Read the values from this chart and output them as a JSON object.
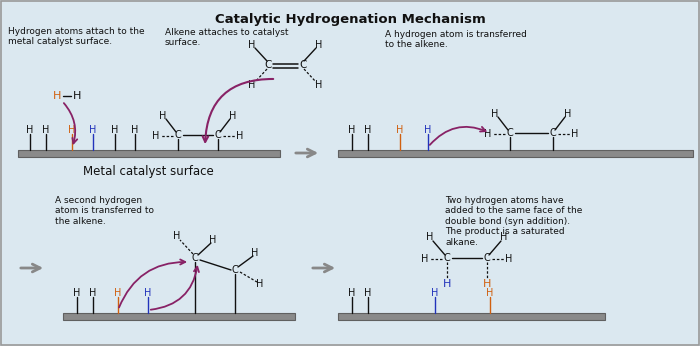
{
  "title": "Catalytic Hydrogenation Mechanism",
  "bg": "#dbe8f0",
  "surf_color": "#8a8a8a",
  "surf_edge": "#606060",
  "orange": "#d06010",
  "blue": "#2233bb",
  "purple": "#882266",
  "gray_arr": "#888888",
  "black": "#111111",
  "ann1": "Hydrogen atoms attach to the\nmetal catalyst surface.",
  "ann2": "Alkene attaches to catalyst\nsurface.",
  "ann3": "A hydrogen atom is transferred\nto the alkene.",
  "ann4": "A second hydrogen\natom is transferred to\nthe alkene.",
  "ann5": "Two hydrogen atoms have\nadded to the same face of the\ndouble bond (syn addition).\nThe product is a saturated\nalkane.",
  "surf_lbl": "Metal catalyst surface"
}
